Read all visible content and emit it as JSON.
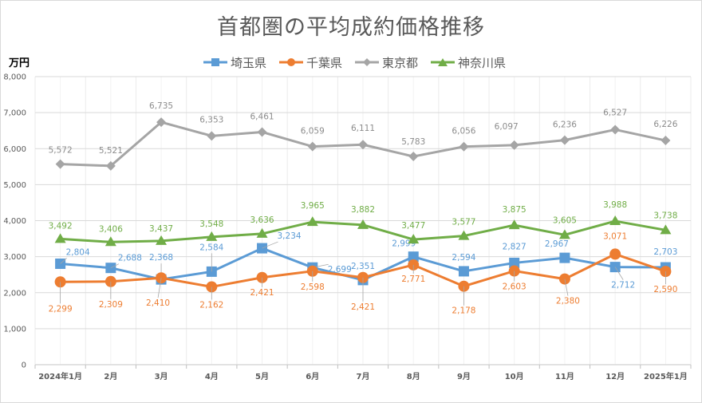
{
  "chart_data": {
    "type": "line",
    "title": "首都圏の平均成約価格推移",
    "ylabel": "万円",
    "xlabel": "",
    "ylim": [
      0,
      8000
    ],
    "yticks": [
      0,
      1000,
      2000,
      3000,
      4000,
      5000,
      6000,
      7000,
      8000
    ],
    "ytick_labels": [
      "0",
      "1,000",
      "2,000",
      "3,000",
      "4,000",
      "5,000",
      "6,000",
      "7,000",
      "8,000"
    ],
    "grid": true,
    "legend_position": "top-center",
    "categories": [
      "2024年1月",
      "2月",
      "3月",
      "4月",
      "5月",
      "6月",
      "7月",
      "8月",
      "9月",
      "10月",
      "11月",
      "12月",
      "2025年1月"
    ],
    "series": [
      {
        "name": "埼玉県",
        "color": "#5b9bd5",
        "marker": "square",
        "values": [
          2804,
          2688,
          2368,
          2584,
          3234,
          2699,
          2351,
          2999,
          2594,
          2827,
          2967,
          2712,
          2703
        ]
      },
      {
        "name": "千葉県",
        "color": "#ed7d31",
        "marker": "circle",
        "values": [
          2299,
          2309,
          2410,
          2162,
          2421,
          2598,
          2421,
          2771,
          2178,
          2603,
          2380,
          3071,
          2590
        ]
      },
      {
        "name": "東京都",
        "color": "#a5a5a5",
        "marker": "diamond",
        "values": [
          5572,
          5521,
          6735,
          6353,
          6461,
          6059,
          6111,
          5783,
          6056,
          6097,
          6236,
          6527,
          6226
        ]
      },
      {
        "name": "神奈川県",
        "color": "#70ad47",
        "marker": "triangle",
        "values": [
          3492,
          3406,
          3437,
          3548,
          3636,
          3965,
          3882,
          3477,
          3577,
          3875,
          3605,
          3988,
          3738
        ]
      }
    ]
  }
}
